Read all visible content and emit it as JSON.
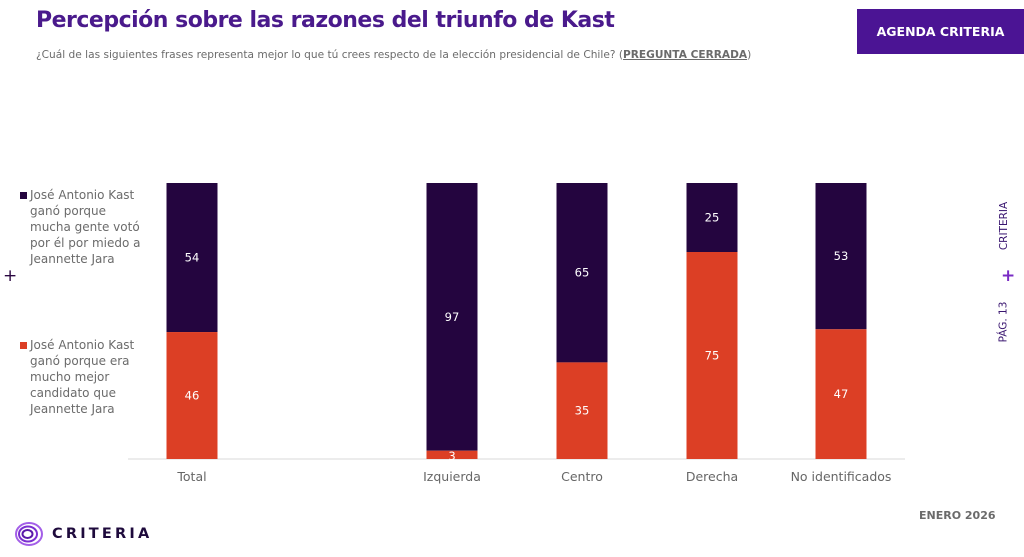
{
  "header": {
    "title": "Percepción sobre las razones del triunfo de Kast",
    "subtitle_text": "¿Cuál de las siguientes frases representa mejor lo que tú crees respecto de la elección presidencial de Chile? (",
    "subtitle_emphasis": "PREGUNTA CERRADA",
    "subtitle_close": ")",
    "badge": "AGENDA CRITERIA"
  },
  "side": {
    "brand": "CRITERIA",
    "page": "PÁG. 13",
    "plus": "+"
  },
  "left_plus": "+",
  "footer": {
    "date": "ENERO 2026",
    "logo_text": "CRITERIA"
  },
  "colors": {
    "series_fear": "#24053f",
    "series_better": "#dc3f25",
    "brand_purple": "#4b1494"
  },
  "chart_data": {
    "type": "bar",
    "stacked": true,
    "percent": true,
    "categories": [
      "Total",
      "Izquierda",
      "Centro",
      "Derecha",
      "No identificados"
    ],
    "series": [
      {
        "name": "José Antonio Kast ganó porque mucha gente votó por él por miedo a Jeannette Jara",
        "values": [
          54,
          97,
          65,
          25,
          53
        ]
      },
      {
        "name": "José Antonio Kast ganó porque era mucho mejor candidato que Jeannette Jara",
        "values": [
          46,
          3,
          35,
          75,
          47
        ]
      }
    ],
    "title": "",
    "xlabel": "",
    "ylabel": "",
    "ylim": [
      0,
      100
    ],
    "grid": false,
    "legend": "left"
  }
}
